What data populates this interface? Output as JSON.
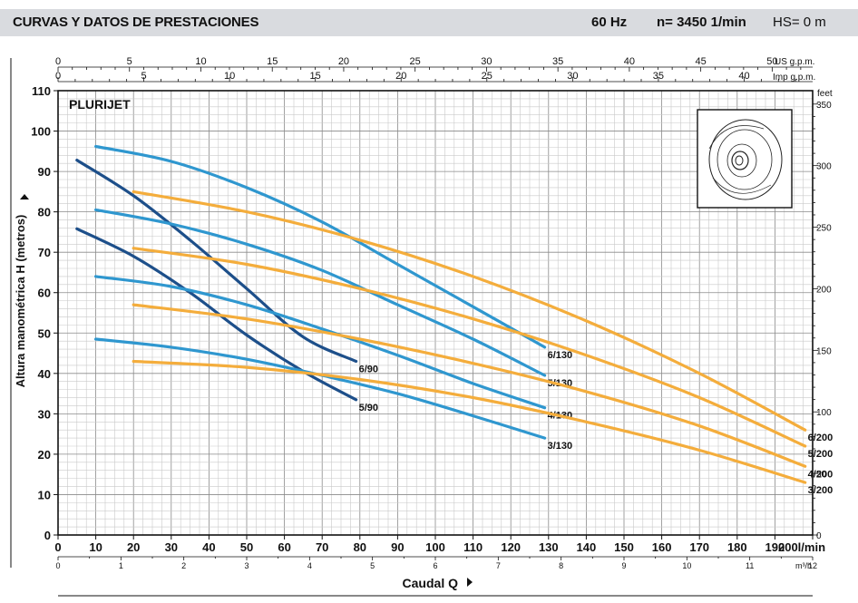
{
  "header": {
    "title": "CURVAS Y DATOS DE PRESTACIONES",
    "frequency": "60 Hz",
    "speed": "n= 3450  1/min",
    "hs": "HS= 0 m"
  },
  "chart_data": {
    "type": "line",
    "title": "PLURIJET",
    "xlabel": "Caudal  Q",
    "ylabel": "Altura manométrica  H  (metros)",
    "x_unit": "l/min",
    "y_unit": "m",
    "xlim": [
      0,
      200
    ],
    "ylim": [
      0,
      110
    ],
    "grid": true,
    "colors": {
      "series_90": "#1d4f8a",
      "series_130": "#2f97cf",
      "series_200": "#f4ad3c"
    },
    "x_ticks": [
      0,
      10,
      20,
      30,
      40,
      50,
      60,
      70,
      80,
      90,
      100,
      110,
      120,
      130,
      140,
      150,
      160,
      170,
      180,
      190,
      200
    ],
    "x_ticks_last_label": "200l/min",
    "y_ticks": [
      0,
      10,
      20,
      30,
      40,
      50,
      60,
      70,
      80,
      90,
      100,
      110
    ],
    "secondary_axes": {
      "bottom_m3h": {
        "unit": "m³/h",
        "ticks": [
          0,
          1,
          2,
          3,
          4,
          5,
          6,
          7,
          8,
          9,
          10,
          11,
          12
        ]
      },
      "top_us_gpm": {
        "unit": "US g.p.m.",
        "ticks": [
          0,
          5,
          10,
          15,
          20,
          25,
          30,
          35,
          40,
          45,
          50
        ]
      },
      "top_imp_gpm": {
        "unit": "Imp g.p.m.",
        "ticks": [
          0,
          5,
          10,
          15,
          20,
          25,
          30,
          35,
          40
        ]
      },
      "right_feet": {
        "unit": "feet",
        "ticks": [
          0,
          50,
          100,
          150,
          200,
          250,
          300,
          350
        ]
      }
    },
    "series": [
      {
        "name": "6/90",
        "group": "90",
        "x": [
          5,
          20,
          35,
          50,
          65,
          79
        ],
        "y": [
          92.8,
          84,
          73,
          61,
          49,
          43
        ]
      },
      {
        "name": "5/90",
        "group": "90",
        "x": [
          5,
          20,
          35,
          50,
          65,
          79
        ],
        "y": [
          75.8,
          69,
          60,
          49.5,
          40.5,
          33.5
        ]
      },
      {
        "name": "6/130",
        "group": "130",
        "x": [
          10,
          30,
          50,
          70,
          90,
          110,
          129
        ],
        "y": [
          96.2,
          92.5,
          86,
          77.5,
          67,
          56.5,
          46.5
        ]
      },
      {
        "name": "5/130",
        "group": "130",
        "x": [
          10,
          30,
          50,
          70,
          90,
          110,
          129
        ],
        "y": [
          80.5,
          77,
          72,
          65.5,
          57,
          48.5,
          39.5
        ]
      },
      {
        "name": "4/130",
        "group": "130",
        "x": [
          10,
          30,
          50,
          70,
          90,
          110,
          129
        ],
        "y": [
          64,
          61.5,
          57,
          51,
          44.5,
          37.5,
          31.5
        ]
      },
      {
        "name": "3/130",
        "group": "130",
        "x": [
          10,
          30,
          50,
          70,
          90,
          110,
          129
        ],
        "y": [
          48.5,
          46.5,
          43.5,
          39.5,
          35,
          29.5,
          24
        ]
      },
      {
        "name": "6/200",
        "group": "200",
        "x": [
          20,
          50,
          80,
          110,
          140,
          170,
          198
        ],
        "y": [
          85,
          80,
          73,
          64,
          53,
          40,
          26
        ]
      },
      {
        "name": "5/200",
        "group": "200",
        "x": [
          20,
          50,
          80,
          110,
          140,
          170,
          198
        ],
        "y": [
          71,
          67,
          61,
          53.5,
          44.5,
          34,
          22
        ]
      },
      {
        "name": "4/200",
        "group": "200",
        "x": [
          20,
          50,
          80,
          110,
          140,
          170,
          198
        ],
        "y": [
          57,
          53.5,
          48.5,
          42.5,
          35.5,
          27,
          17
        ]
      },
      {
        "name": "3/200",
        "group": "200",
        "x": [
          20,
          50,
          80,
          110,
          140,
          170,
          198
        ],
        "y": [
          43,
          41.5,
          38.5,
          34,
          28,
          21,
          13
        ]
      }
    ]
  }
}
